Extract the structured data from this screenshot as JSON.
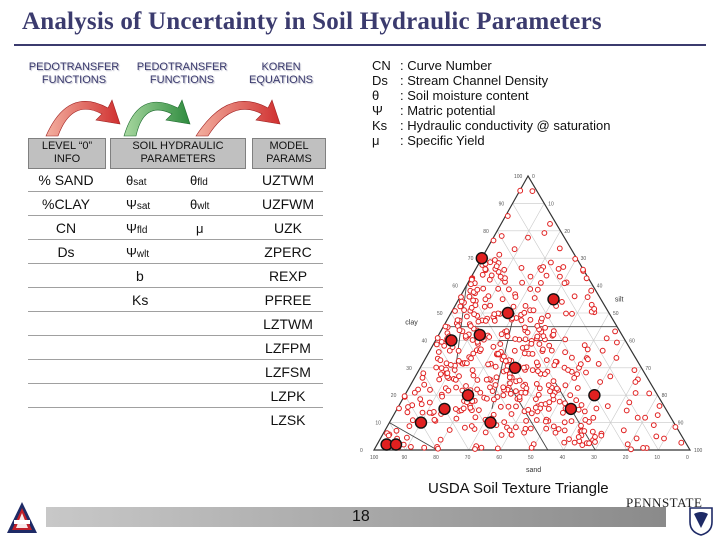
{
  "title": "Analysis of Uncertainty in Soil Hydraulic Parameters",
  "headers": {
    "ptf1": "PEDOTRANSFER\nFUNCTIONS",
    "ptf2": "PEDOTRANSFER\nFUNCTIONS",
    "koren": "KOREN\nEQUATIONS"
  },
  "boxes": {
    "level0": "LEVEL “0”\nINFO",
    "shp": "SOIL HYDRAULIC\nPARAMETERS",
    "model": "MODEL\nPARAMS"
  },
  "table": {
    "col1": [
      "% SAND",
      "%CLAY",
      "CN",
      "Ds"
    ],
    "col2": [
      {
        "sym": "θ",
        "sub": "sat"
      },
      {
        "sym": "Ψ",
        "sub": "sat"
      },
      {
        "sym": "Ψ",
        "sub": "fld"
      },
      {
        "sym": "Ψ",
        "sub": "wlt"
      }
    ],
    "col2_extra": [
      "b",
      "Ks"
    ],
    "col3": [
      {
        "sym": "θ",
        "sub": "fld"
      },
      {
        "sym": "θ",
        "sub": "wlt"
      },
      {
        "sym": "μ",
        "sub": ""
      }
    ],
    "col4": [
      "UZTWM",
      "UZFWM",
      "UZK",
      "ZPERC",
      "REXP",
      "PFREE",
      "LZTWM",
      "LZFPM",
      "LZFSM",
      "LZPK",
      "LZSK"
    ]
  },
  "legend": [
    {
      "abbr": "CN",
      "desc": ": Curve Number"
    },
    {
      "abbr": "Ds",
      "desc": ": Stream Channel Density"
    },
    {
      "abbr": "θ",
      "desc": ": Soil moisture content"
    },
    {
      "abbr": "Ψ",
      "desc": ": Matric potential"
    },
    {
      "abbr": "Ks",
      "desc": ": Hydraulic conductivity @ saturation"
    },
    {
      "abbr": "μ",
      "desc": ": Specific Yield"
    }
  ],
  "triangle": {
    "left_label": "clay",
    "right_label": "silt",
    "bottom_label": "sand",
    "tick_values": [
      "0",
      "10",
      "20",
      "30",
      "40",
      "50",
      "60",
      "70",
      "80",
      "90",
      "100"
    ]
  },
  "caption": "USDA Soil Texture Triangle",
  "page_number": "18",
  "logo_right_text": "PENNSTATE",
  "colors": {
    "title": "#3b3b6e",
    "arrow_red": "#d03030",
    "arrow_green": "#2e8b3e",
    "box_gray": "#c0c0c0",
    "point_red": "#e02020"
  }
}
